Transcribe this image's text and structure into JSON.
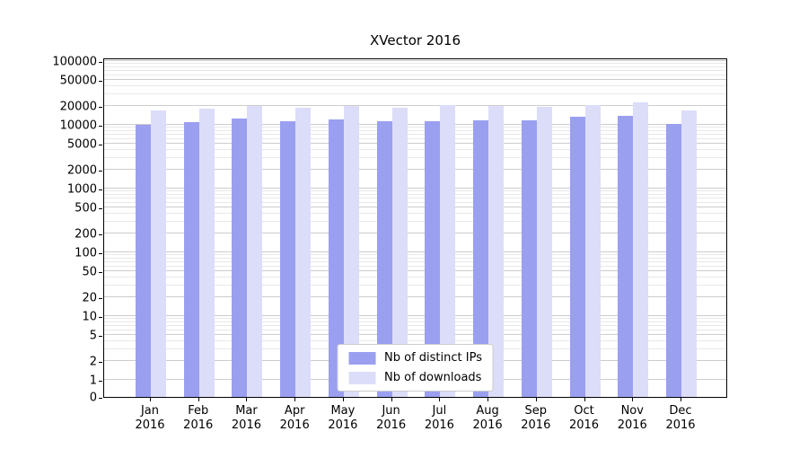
{
  "chart_data": {
    "type": "bar",
    "title": "XVector 2016",
    "categories": [
      "Jan",
      "Feb",
      "Mar",
      "Apr",
      "May",
      "Jun",
      "Jul",
      "Aug",
      "Sep",
      "Oct",
      "Nov",
      "Dec"
    ],
    "year_label": "2016",
    "series": [
      {
        "name": "Nb of distinct IPs",
        "color": "#9b9ff0",
        "values": [
          10000,
          11000,
          12600,
          11400,
          12200,
          11300,
          11300,
          11700,
          11900,
          13300,
          13900,
          10300
        ]
      },
      {
        "name": "Nb of downloads",
        "color": "#dcddf8",
        "values": [
          16600,
          18100,
          19700,
          18400,
          19700,
          18700,
          20100,
          19600,
          19400,
          20700,
          22200,
          16700
        ]
      }
    ],
    "yscale": "symlog",
    "y_ticks": [
      0,
      1,
      2,
      5,
      10,
      20,
      50,
      100,
      200,
      500,
      1000,
      2000,
      5000,
      10000,
      20000,
      50000,
      100000
    ],
    "y_tick_labels": [
      "0",
      "1",
      "2",
      "5",
      "10",
      "20",
      "50",
      "100",
      "200",
      "500",
      "1000",
      "2000",
      "5000",
      "10000",
      "20000",
      "50000",
      "100000"
    ],
    "ylim": [
      0,
      120000
    ],
    "grid": true,
    "legend_position": "lower center"
  },
  "colors": {
    "grid_major": "#cccccc",
    "grid_minor": "#e8e8e8",
    "axis": "#000000",
    "background": "#ffffff"
  }
}
